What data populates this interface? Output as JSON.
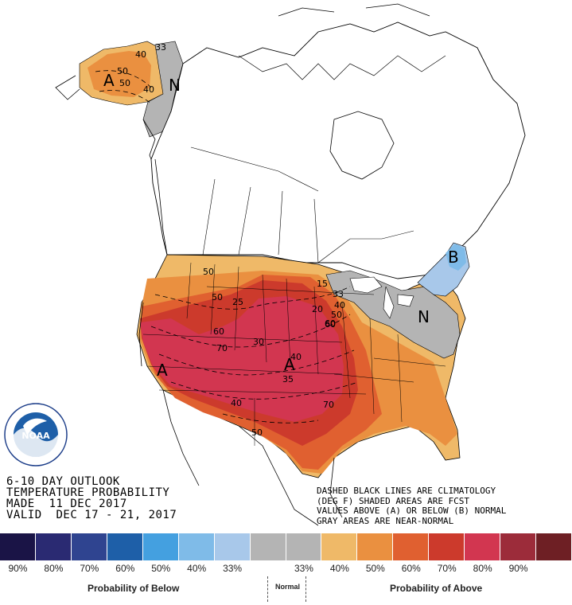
{
  "title_block": {
    "line1": "6-10 DAY OUTLOOK",
    "line2": "TEMPERATURE PROBABILITY",
    "line3": "MADE  11 DEC 2017",
    "line4": "VALID  DEC 17 - 21, 2017"
  },
  "legend_note": {
    "line1": "DASHED BLACK LINES ARE CLIMATOLOGY",
    "line2": "(DEG F) SHADED AREAS ARE FCST",
    "line3": "VALUES ABOVE (A) OR BELOW (B) NORMAL",
    "line4": "GRAY AREAS ARE NEAR-NORMAL"
  },
  "logo": {
    "name": "NOAA",
    "ring_text": "NATIONAL OCEANIC AND ATMOSPHERIC ADMINISTRATION · U.S. DEPARTMENT OF COMMERCE"
  },
  "map_labels": {
    "alaska_A": "A",
    "alaska_N": "N",
    "west_A": "A",
    "central_A": "A",
    "northeast_B": "B",
    "east_N": "N"
  },
  "contour_labels": [
    "50",
    "40",
    "33",
    "50",
    "40",
    "50",
    "50",
    "60",
    "70",
    "60",
    "70",
    "40",
    "35",
    "40",
    "50",
    "15",
    "20",
    "25",
    "30",
    "33",
    "40",
    "50",
    "60"
  ],
  "colorbar": {
    "colors": [
      "#1a1446",
      "#2a2a72",
      "#2f4490",
      "#1e5fa8",
      "#44a0e0",
      "#7fbbe8",
      "#a8c8ea",
      "#b4b4b4",
      "#b4b4b4",
      "#efb968",
      "#ea9040",
      "#e06030",
      "#cc3a2c",
      "#d23650",
      "#9c2c3a",
      "#6e1f24"
    ],
    "ticks": [
      "90%",
      "80%",
      "70%",
      "60%",
      "50%",
      "40%",
      "33%",
      "",
      "33%",
      "40%",
      "50%",
      "60%",
      "70%",
      "80%",
      "90%",
      ""
    ],
    "below_label": "Probability of Below",
    "normal_label": "Normal",
    "above_label": "Probability of Above"
  }
}
